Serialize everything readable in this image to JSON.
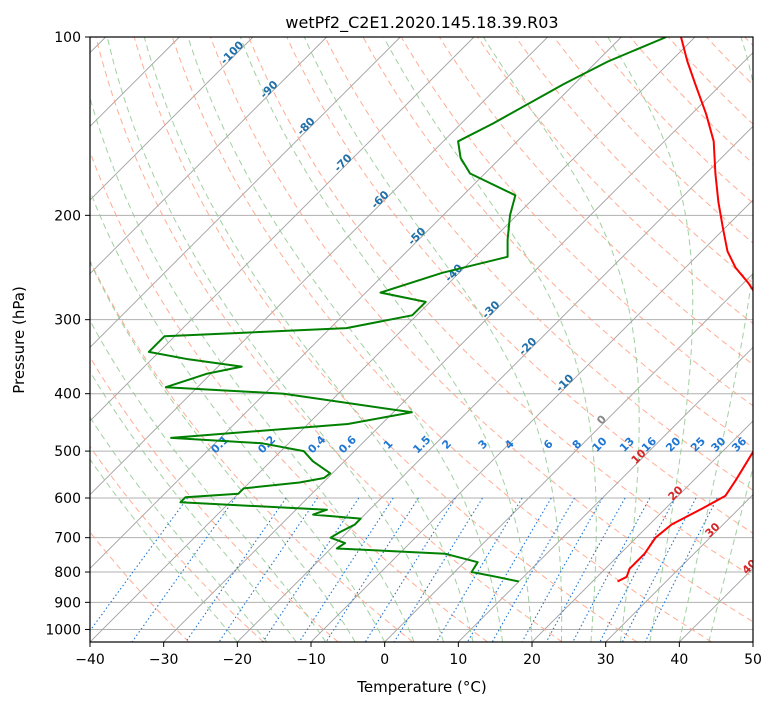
{
  "chart_data": {
    "type": "line",
    "subtype": "skew-t log-p diagram",
    "title": "wetPf2_C2E1.2020.145.18.39.R03",
    "xlabel": "Temperature (°C)",
    "ylabel": "Pressure (hPa)",
    "xlim": [
      -40,
      50
    ],
    "ylim": [
      1050,
      100
    ],
    "y_scale": "log",
    "grid": true,
    "x_ticks": [
      "−40",
      "−30",
      "−20",
      "−10",
      "0",
      "10",
      "20",
      "30",
      "40",
      "50"
    ],
    "x_tick_values": [
      -40,
      -30,
      -20,
      -10,
      0,
      10,
      20,
      30,
      40,
      50
    ],
    "y_ticks": [
      "100",
      "200",
      "300",
      "400",
      "500",
      "600",
      "700",
      "800",
      "900",
      "1000"
    ],
    "y_tick_values": [
      100,
      200,
      300,
      400,
      500,
      600,
      700,
      800,
      900,
      1000
    ],
    "series": [
      {
        "role": "temperature",
        "color": "#ff0000",
        "points": [
          [
            830,
            23.4
          ],
          [
            815,
            24.0
          ],
          [
            790,
            23.3
          ],
          [
            745,
            23.3
          ],
          [
            700,
            22.6
          ],
          [
            665,
            23.0
          ],
          [
            625,
            25.0
          ],
          [
            595,
            26.4
          ],
          [
            560,
            25.7
          ],
          [
            520,
            24.7
          ],
          [
            480,
            23.6
          ],
          [
            450,
            22.3
          ],
          [
            420,
            20.3
          ],
          [
            400,
            18.6
          ],
          [
            375,
            17.2
          ],
          [
            360,
            16.3
          ],
          [
            340,
            14.2
          ],
          [
            320,
            11.2
          ],
          [
            300,
            8.3
          ],
          [
            280,
            4.9
          ],
          [
            260,
            0.6
          ],
          [
            245,
            -3.2
          ],
          [
            230,
            -6.5
          ],
          [
            210,
            -10.3
          ],
          [
            190,
            -14.4
          ],
          [
            170,
            -18.7
          ],
          [
            150,
            -23.3
          ],
          [
            135,
            -28.0
          ],
          [
            120,
            -33.6
          ],
          [
            110,
            -37.7
          ],
          [
            100,
            -41.9
          ]
        ]
      },
      {
        "role": "dewpoint",
        "color": "#008000",
        "points": [
          [
            830,
            10.0
          ],
          [
            815,
            6.3
          ],
          [
            800,
            2.3
          ],
          [
            770,
            1.8
          ],
          [
            745,
            -3.8
          ],
          [
            730,
            -19.2
          ],
          [
            715,
            -18.8
          ],
          [
            700,
            -21.5
          ],
          [
            685,
            -21.0
          ],
          [
            665,
            -20.0
          ],
          [
            650,
            -20.0
          ],
          [
            640,
            -27.0
          ],
          [
            628,
            -25.8
          ],
          [
            610,
            -46.7
          ],
          [
            598,
            -46.7
          ],
          [
            590,
            -40.0
          ],
          [
            578,
            -40.0
          ],
          [
            565,
            -33.2
          ],
          [
            555,
            -30.5
          ],
          [
            545,
            -30.3
          ],
          [
            520,
            -34.3
          ],
          [
            500,
            -36.9
          ],
          [
            485,
            -43.6
          ],
          [
            475,
            -56.7
          ],
          [
            450,
            -34.6
          ],
          [
            430,
            -27.5
          ],
          [
            400,
            -47.4
          ],
          [
            390,
            -64.3
          ],
          [
            370,
            -60.5
          ],
          [
            360,
            -56.8
          ],
          [
            350,
            -65.0
          ],
          [
            340,
            -71.4
          ],
          [
            320,
            -71.4
          ],
          [
            310,
            -47.8
          ],
          [
            295,
            -40.6
          ],
          [
            280,
            -40.6
          ],
          [
            270,
            -48.0
          ],
          [
            250,
            -42.3
          ],
          [
            235,
            -35.6
          ],
          [
            220,
            -37.9
          ],
          [
            200,
            -40.9
          ],
          [
            185,
            -42.9
          ],
          [
            170,
            -52.0
          ],
          [
            160,
            -55.4
          ],
          [
            150,
            -58.0
          ],
          [
            140,
            -55.7
          ],
          [
            120,
            -51.4
          ],
          [
            110,
            -48.5
          ],
          [
            100,
            -43.9
          ]
        ]
      }
    ],
    "isotherm_labels": [
      "-100",
      "-90",
      "-80",
      "-70",
      "-60",
      "-50",
      "-40",
      "-30",
      "-20",
      "-10",
      "0",
      "10",
      "20",
      "30",
      "40"
    ],
    "isotherm_label_values": [
      -100,
      -90,
      -80,
      -70,
      -60,
      -50,
      -40,
      -30,
      -20,
      -10,
      0,
      10,
      20,
      30,
      40
    ],
    "mixing_ratio_labels": [
      "0.1",
      "0.2",
      "0.4",
      "0.6",
      "1",
      "1.5",
      "2",
      "3",
      "4",
      "6",
      "8",
      "10",
      "13",
      "16",
      "20",
      "25",
      "30",
      "36"
    ],
    "mixing_ratio_values": [
      0.1,
      0.2,
      0.4,
      0.6,
      1,
      1.5,
      2,
      3,
      4,
      6,
      8,
      10,
      13,
      16,
      20,
      25,
      30,
      36
    ],
    "line_colors": {
      "grid": "#b0b0b0",
      "skewed_isotherms": "#a0a0a0",
      "dry_adiabats": "#ff9f80",
      "moist_adiabats": "#90c890",
      "mixing_ratio": "#1f77d4",
      "isotherm_label_cold": "#1f6fa8",
      "isotherm_label_warm": "#d62728",
      "isotherm_label_zero": "#888888",
      "extra_curves": "#c8b090"
    }
  }
}
